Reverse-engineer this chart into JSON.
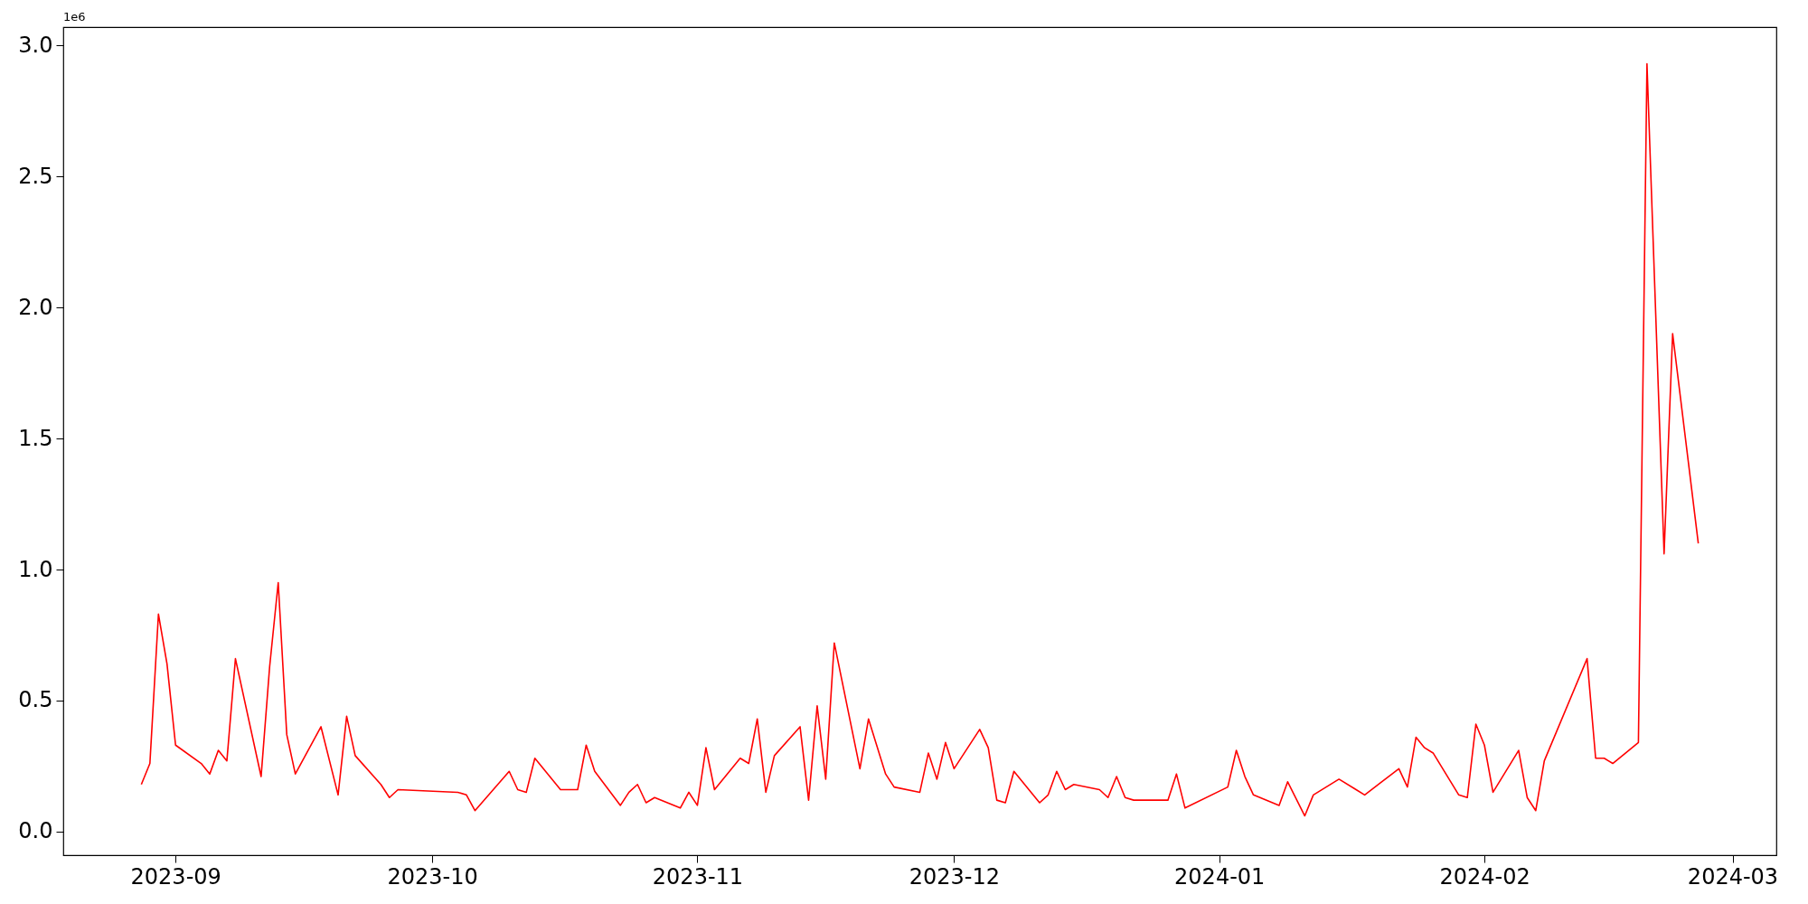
{
  "chart_data": {
    "type": "line",
    "x": [
      "2023-08-28",
      "2023-08-29",
      "2023-08-30",
      "2023-08-31",
      "2023-09-01",
      "2023-09-04",
      "2023-09-05",
      "2023-09-06",
      "2023-09-07",
      "2023-09-08",
      "2023-09-11",
      "2023-09-12",
      "2023-09-13",
      "2023-09-14",
      "2023-09-15",
      "2023-09-18",
      "2023-09-20",
      "2023-09-21",
      "2023-09-22",
      "2023-09-25",
      "2023-09-26",
      "2023-09-27",
      "2023-10-04",
      "2023-10-05",
      "2023-10-06",
      "2023-10-10",
      "2023-10-11",
      "2023-10-12",
      "2023-10-13",
      "2023-10-16",
      "2023-10-17",
      "2023-10-18",
      "2023-10-19",
      "2023-10-20",
      "2023-10-23",
      "2023-10-24",
      "2023-10-25",
      "2023-10-26",
      "2023-10-27",
      "2023-10-30",
      "2023-10-31",
      "2023-11-01",
      "2023-11-02",
      "2023-11-03",
      "2023-11-06",
      "2023-11-07",
      "2023-11-08",
      "2023-11-09",
      "2023-11-10",
      "2023-11-13",
      "2023-11-14",
      "2023-11-15",
      "2023-11-16",
      "2023-11-17",
      "2023-11-20",
      "2023-11-21",
      "2023-11-23",
      "2023-11-24",
      "2023-11-27",
      "2023-11-28",
      "2023-11-29",
      "2023-11-30",
      "2023-12-01",
      "2023-12-04",
      "2023-12-05",
      "2023-12-06",
      "2023-12-07",
      "2023-12-08",
      "2023-12-11",
      "2023-12-12",
      "2023-12-13",
      "2023-12-14",
      "2023-12-15",
      "2023-12-18",
      "2023-12-19",
      "2023-12-20",
      "2023-12-21",
      "2023-12-22",
      "2023-12-26",
      "2023-12-27",
      "2023-12-28",
      "2024-01-02",
      "2024-01-03",
      "2024-01-04",
      "2024-01-05",
      "2024-01-08",
      "2024-01-09",
      "2024-01-11",
      "2024-01-12",
      "2024-01-15",
      "2024-01-17",
      "2024-01-18",
      "2024-01-22",
      "2024-01-23",
      "2024-01-24",
      "2024-01-25",
      "2024-01-26",
      "2024-01-29",
      "2024-01-30",
      "2024-01-31",
      "2024-02-01",
      "2024-02-02",
      "2024-02-05",
      "2024-02-06",
      "2024-02-07",
      "2024-02-08",
      "2024-02-13",
      "2024-02-14",
      "2024-02-15",
      "2024-02-16",
      "2024-02-19",
      "2024-02-20",
      "2024-02-22",
      "2024-02-23",
      "2024-02-26"
    ],
    "series": [
      {
        "color": "#ff0000",
        "values": [
          0.18,
          0.26,
          0.83,
          0.64,
          0.33,
          0.26,
          0.22,
          0.31,
          0.27,
          0.66,
          0.21,
          0.63,
          0.95,
          0.37,
          0.22,
          0.4,
          0.14,
          0.44,
          0.29,
          0.18,
          0.13,
          0.16,
          0.15,
          0.14,
          0.08,
          0.23,
          0.16,
          0.15,
          0.28,
          0.16,
          0.16,
          0.16,
          0.33,
          0.23,
          0.1,
          0.15,
          0.18,
          0.11,
          0.13,
          0.09,
          0.15,
          0.1,
          0.32,
          0.16,
          0.28,
          0.26,
          0.43,
          0.15,
          0.29,
          0.4,
          0.12,
          0.48,
          0.2,
          0.72,
          0.24,
          0.43,
          0.22,
          0.17,
          0.15,
          0.3,
          0.2,
          0.34,
          0.24,
          0.39,
          0.32,
          0.12,
          0.11,
          0.23,
          0.11,
          0.14,
          0.23,
          0.16,
          0.18,
          0.16,
          0.13,
          0.21,
          0.13,
          0.12,
          0.12,
          0.22,
          0.09,
          0.17,
          0.31,
          0.21,
          0.14,
          0.1,
          0.19,
          0.06,
          0.14,
          0.2,
          0.16,
          0.14,
          0.24,
          0.17,
          0.36,
          0.32,
          0.3,
          0.14,
          0.13,
          0.41,
          0.33,
          0.15,
          0.31,
          0.13,
          0.08,
          0.27,
          0.66,
          0.28,
          0.28,
          0.26,
          0.34,
          2.93,
          1.06,
          1.9,
          1.1
        ]
      }
    ],
    "xlim": [
      "2023-08-18T21:00",
      "2024-03-06T03:00"
    ],
    "xticks": [
      "2023-09",
      "2023-10",
      "2023-11",
      "2023-12",
      "2024-01",
      "2024-02",
      "2024-03"
    ],
    "ylim": [
      -0.09,
      3.07
    ],
    "yticks": [
      {
        "value": 0,
        "label": "0.0"
      },
      {
        "value": 0.5,
        "label": "0.5"
      },
      {
        "value": 1,
        "label": "1.0"
      },
      {
        "value": 1.5,
        "label": "1.5"
      },
      {
        "value": 2,
        "label": "2.0"
      },
      {
        "value": 2.5,
        "label": "2.5"
      },
      {
        "value": 3,
        "label": "3.0"
      }
    ],
    "annotations": [
      "1e6"
    ]
  }
}
